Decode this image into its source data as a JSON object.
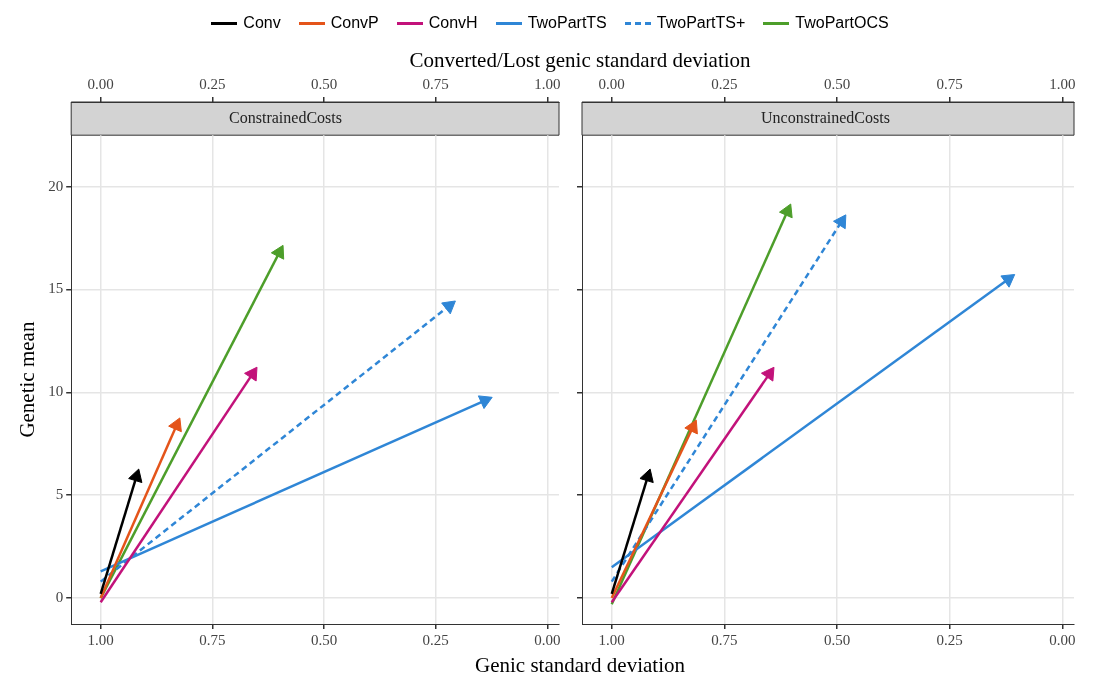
{
  "chart_data": [
    {
      "type": "line",
      "title": "ConstrainedCosts",
      "xlabel": "Genic standard deviation",
      "ylabel": "Genetic mean",
      "x2label": "Converted/Lost genic standard deviation",
      "legend": "top",
      "grid": true,
      "xlim": [
        1.066,
        -0.026
      ],
      "xticks": [
        {
          "value": 1,
          "label": "1.00"
        },
        {
          "value": 0.75,
          "label": "0.75"
        },
        {
          "value": 0.5,
          "label": "0.50"
        },
        {
          "value": 0.25,
          "label": "0.25"
        },
        {
          "value": 0,
          "label": "0.00"
        }
      ],
      "x2lim": [
        -0.066,
        1.026
      ],
      "x2ticks": [
        {
          "value": 0,
          "label": "0.00"
        },
        {
          "value": 0.25,
          "label": "0.25"
        },
        {
          "value": 0.5,
          "label": "0.50"
        },
        {
          "value": 0.75,
          "label": "0.75"
        },
        {
          "value": 1,
          "label": "1.00"
        }
      ],
      "ylim": [
        -1.26,
        22.5
      ],
      "yticks": [
        0,
        5,
        10,
        15,
        20
      ],
      "series": [
        {
          "name": "Conv",
          "color": "#000000",
          "x": [
            1,
            0.92
          ],
          "values": [
            0.2,
            5.9
          ]
        },
        {
          "name": "ConvP",
          "color": "#e4541a",
          "x": [
            1,
            0.83
          ],
          "values": [
            0,
            8.4
          ]
        },
        {
          "name": "ConvH",
          "color": "#c2127a",
          "x": [
            1,
            0.66
          ],
          "values": [
            -0.2,
            10.9
          ]
        },
        {
          "name": "TwoPartTS",
          "color": "#2f86d6",
          "x": [
            1,
            0.14
          ],
          "values": [
            1.3,
            9.6
          ]
        },
        {
          "name": "TwoPartTS+",
          "color": "#2f86d6",
          "line_style": "dashed",
          "x": [
            1,
            0.22
          ],
          "values": [
            0.8,
            14.2
          ]
        },
        {
          "name": "TwoPartOCS",
          "color": "#4d9e2a",
          "x": [
            1,
            0.6
          ],
          "values": [
            0,
            16.8
          ]
        }
      ]
    },
    {
      "type": "line",
      "title": "UnconstrainedCosts",
      "tick_labels": "x",
      "grid": true,
      "xlim": [
        1.066,
        -0.026
      ],
      "xticks": [
        {
          "value": 1,
          "label": "1.00"
        },
        {
          "value": 0.75,
          "label": "0.75"
        },
        {
          "value": 0.5,
          "label": "0.50"
        },
        {
          "value": 0.25,
          "label": "0.25"
        },
        {
          "value": 0,
          "label": "0.00"
        }
      ],
      "x2lim": [
        -0.066,
        1.026
      ],
      "x2ticks": [
        {
          "value": 0,
          "label": "0.00"
        },
        {
          "value": 0.25,
          "label": "0.25"
        },
        {
          "value": 0.5,
          "label": "0.50"
        },
        {
          "value": 0.75,
          "label": "0.75"
        },
        {
          "value": 1,
          "label": "1.00"
        }
      ],
      "ylim": [
        -1.26,
        22.5
      ],
      "yticks": [
        0,
        5,
        10,
        15,
        20
      ],
      "series": [
        {
          "color": "#000000",
          "x": [
            1,
            0.92
          ],
          "values": [
            0.2,
            5.9
          ]
        },
        {
          "color": "#e4541a",
          "x": [
            1,
            0.82
          ],
          "values": [
            0,
            8.3
          ]
        },
        {
          "color": "#c2127a",
          "x": [
            1,
            0.65
          ],
          "values": [
            -0.2,
            10.9
          ]
        },
        {
          "color": "#2f86d6",
          "x": [
            1,
            0.12
          ],
          "values": [
            1.5,
            15.5
          ]
        },
        {
          "color": "#2f86d6",
          "line_style": "dashed",
          "x": [
            1,
            0.49
          ],
          "values": [
            0.8,
            18.3
          ]
        },
        {
          "color": "#4d9e2a",
          "x": [
            1,
            0.61
          ],
          "values": [
            -0.3,
            18.8
          ]
        }
      ]
    }
  ]
}
